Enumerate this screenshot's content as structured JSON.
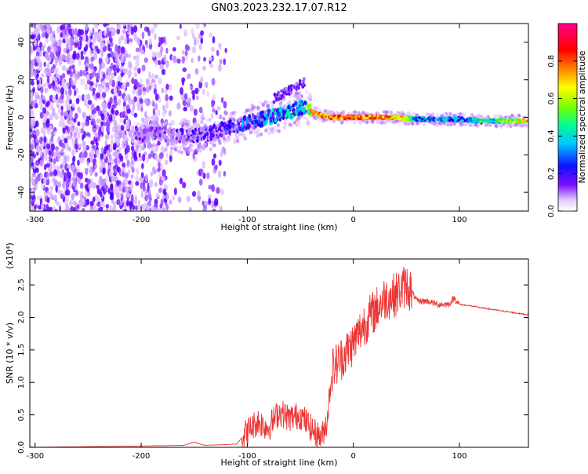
{
  "title": "GN03.2023.232.17.07.R12",
  "chart_data": [
    {
      "type": "heatmap",
      "xlabel": "Height of straight line (km)",
      "ylabel": "Frequency (Hz)",
      "xlim": [
        -305,
        165
      ],
      "ylim": [
        -50,
        50
      ],
      "x_ticks": [
        -300,
        -200,
        -100,
        0,
        100
      ],
      "x_tick_labels": [
        "-300",
        "-200",
        "-100",
        "0",
        "100"
      ],
      "y_ticks": [
        -40,
        -20,
        0,
        20,
        40
      ],
      "y_tick_labels": [
        "-40",
        "-20",
        "0",
        "20",
        "40"
      ],
      "colorbar": {
        "label": "Normalized spectral amplitude",
        "range": [
          0,
          1
        ],
        "ticks": [
          0.0,
          0.2,
          0.4,
          0.6,
          0.8
        ],
        "tick_labels": [
          "0.0",
          "0.2",
          "0.4",
          "0.6",
          "0.8"
        ],
        "colormap": [
          "#ffffff",
          "#d8b4ff",
          "#6a00ff",
          "#0000ff",
          "#00c8ff",
          "#00ff80",
          "#80ff00",
          "#ffff00",
          "#ff8000",
          "#ff0000",
          "#ff0080"
        ]
      },
      "ridge": {
        "x": [
          -205,
          -180,
          -160,
          -140,
          -120,
          -100,
          -80,
          -60,
          -45,
          -40,
          -30,
          -20,
          0,
          20,
          40,
          60,
          80,
          100,
          120,
          140,
          165
        ],
        "freq": [
          -9,
          -9,
          -10,
          -9,
          -6,
          -3,
          0,
          3,
          6,
          3,
          1,
          0,
          0,
          0,
          0,
          -1,
          -1,
          -1,
          -2,
          -2,
          -2
        ],
        "amplitude": [
          0.2,
          0.25,
          0.3,
          0.3,
          0.35,
          0.4,
          0.45,
          0.5,
          0.5,
          0.85,
          0.9,
          0.95,
          0.95,
          0.95,
          0.9,
          0.55,
          0.5,
          0.5,
          0.6,
          0.65,
          0.9
        ]
      }
    },
    {
      "type": "line",
      "xlabel": "Height of straight line (km)",
      "ylabel": "SNR (10 * v/v)",
      "y_multiplier": "(x10⁴)",
      "xlim": [
        -305,
        165
      ],
      "ylim": [
        0,
        2.9
      ],
      "x_ticks": [
        -300,
        -200,
        -100,
        0,
        100
      ],
      "x_tick_labels": [
        "-300",
        "-200",
        "-100",
        "0",
        "100"
      ],
      "y_ticks": [
        0.0,
        0.5,
        1.0,
        1.5,
        2.0,
        2.5
      ],
      "y_tick_labels": [
        "0.0",
        "0.5",
        "1.0",
        "1.5",
        "2.0",
        "2.5"
      ],
      "color": "#ee3333",
      "series": [
        {
          "x": [
            -305,
            -250,
            -200,
            -160,
            -150,
            -140,
            -110,
            -100,
            -90,
            -80,
            -70,
            -60,
            -50,
            -45,
            -40,
            -35,
            -30,
            -25,
            -20,
            -15,
            -10,
            -5,
            0,
            10,
            20,
            30,
            40,
            50,
            55,
            60,
            65,
            70,
            80,
            90,
            95,
            100,
            110,
            120,
            140,
            165
          ],
          "y": [
            0.0,
            0.01,
            0.02,
            0.03,
            0.08,
            0.03,
            0.05,
            0.25,
            0.4,
            0.3,
            0.55,
            0.45,
            0.5,
            0.4,
            0.3,
            0.2,
            0.15,
            0.4,
            1.2,
            1.3,
            1.4,
            1.5,
            1.6,
            1.9,
            2.1,
            2.3,
            2.35,
            2.5,
            2.4,
            2.25,
            2.25,
            2.25,
            2.2,
            2.2,
            2.3,
            2.2,
            2.18,
            2.15,
            2.1,
            2.04
          ]
        }
      ]
    }
  ]
}
